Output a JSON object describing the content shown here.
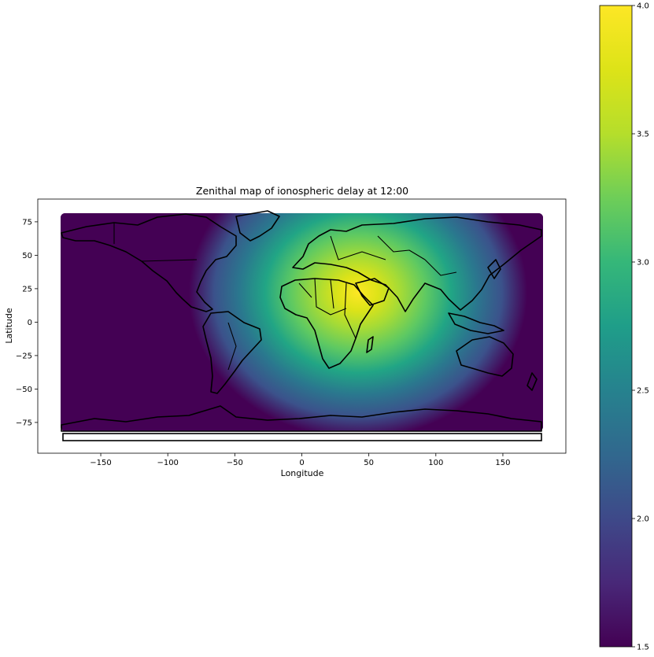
{
  "chart_data": {
    "type": "heatmap",
    "title": "Zenithal map of ionospheric delay at 12:00",
    "xlabel": "Longitude",
    "ylabel": "Latitude",
    "xlim": [
      -197,
      197
    ],
    "ylim": [
      -98,
      92
    ],
    "x_ticks": [
      -150,
      -100,
      -50,
      0,
      50,
      100,
      150
    ],
    "x_tick_labels": [
      "−150",
      "−100",
      "−50",
      "0",
      "50",
      "100",
      "150"
    ],
    "y_ticks": [
      75,
      50,
      25,
      0,
      -25,
      -50,
      -75
    ],
    "y_tick_labels": [
      "75",
      "50",
      "25",
      "0",
      "−25",
      "−50",
      "−75"
    ],
    "data_extent": {
      "lon": [
        -180,
        180
      ],
      "lat": [
        -81.5,
        81.5
      ]
    },
    "field": {
      "description": "ionospheric delay, peak near subsolar region",
      "peak_lon": 40,
      "peak_lat": 18,
      "min": 1.5,
      "max": 4.0
    },
    "colorbar": {
      "colormap": "viridis",
      "min": 1.5,
      "max": 4.0,
      "ticks": [
        1.5,
        2.0,
        2.5,
        3.0,
        3.5,
        4.0
      ],
      "tick_labels": [
        "1.5",
        "2.0",
        "2.5",
        "3.0",
        "3.5",
        "4.0"
      ]
    },
    "grid": false,
    "overlay": "country borders and coastlines (black)"
  }
}
